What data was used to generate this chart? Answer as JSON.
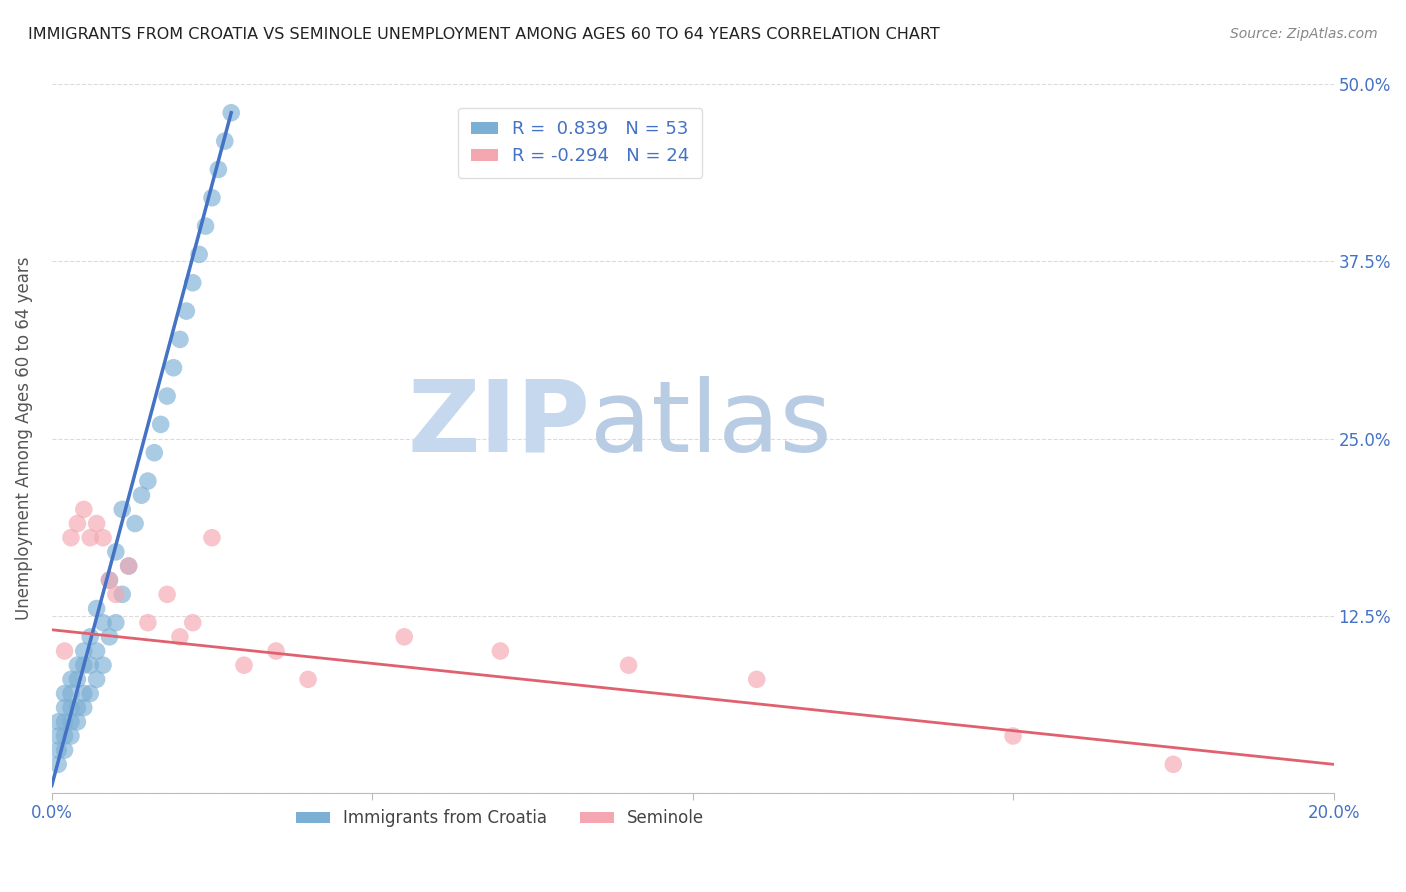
{
  "title": "IMMIGRANTS FROM CROATIA VS SEMINOLE UNEMPLOYMENT AMONG AGES 60 TO 64 YEARS CORRELATION CHART",
  "source_text": "Source: ZipAtlas.com",
  "ylabel": "Unemployment Among Ages 60 to 64 years",
  "xlabel": "",
  "xlim": [
    0.0,
    0.2
  ],
  "ylim": [
    0.0,
    0.5
  ],
  "xticks": [
    0.0,
    0.05,
    0.1,
    0.15,
    0.2
  ],
  "xticklabels": [
    "0.0%",
    "",
    "",
    "",
    "20.0%"
  ],
  "yticks": [
    0.0,
    0.125,
    0.25,
    0.375,
    0.5
  ],
  "yticklabels": [
    "",
    "12.5%",
    "25.0%",
    "37.5%",
    "50.0%"
  ],
  "blue_R": 0.839,
  "blue_N": 53,
  "pink_R": -0.294,
  "pink_N": 24,
  "blue_color": "#7bafd4",
  "pink_color": "#f4a7b0",
  "blue_line_color": "#4472c4",
  "pink_line_color": "#e06070",
  "watermark_zip": "ZIP",
  "watermark_atlas": "atlas",
  "watermark_zip_color": "#c5d8ee",
  "watermark_atlas_color": "#b8cce4",
  "legend_label_blue": "Immigrants from Croatia",
  "legend_label_pink": "Seminole",
  "blue_scatter_x": [
    0.001,
    0.001,
    0.001,
    0.001,
    0.002,
    0.002,
    0.002,
    0.002,
    0.002,
    0.003,
    0.003,
    0.003,
    0.003,
    0.003,
    0.004,
    0.004,
    0.004,
    0.004,
    0.005,
    0.005,
    0.005,
    0.005,
    0.006,
    0.006,
    0.006,
    0.007,
    0.007,
    0.007,
    0.008,
    0.008,
    0.009,
    0.009,
    0.01,
    0.01,
    0.011,
    0.011,
    0.012,
    0.013,
    0.014,
    0.015,
    0.016,
    0.017,
    0.018,
    0.019,
    0.02,
    0.021,
    0.022,
    0.023,
    0.024,
    0.025,
    0.026,
    0.027,
    0.028
  ],
  "blue_scatter_y": [
    0.02,
    0.03,
    0.04,
    0.05,
    0.03,
    0.04,
    0.05,
    0.06,
    0.07,
    0.04,
    0.05,
    0.06,
    0.07,
    0.08,
    0.05,
    0.06,
    0.08,
    0.09,
    0.06,
    0.07,
    0.09,
    0.1,
    0.07,
    0.09,
    0.11,
    0.08,
    0.1,
    0.13,
    0.09,
    0.12,
    0.11,
    0.15,
    0.12,
    0.17,
    0.14,
    0.2,
    0.16,
    0.19,
    0.21,
    0.22,
    0.24,
    0.26,
    0.28,
    0.3,
    0.32,
    0.34,
    0.36,
    0.38,
    0.4,
    0.42,
    0.44,
    0.46,
    0.48
  ],
  "pink_scatter_x": [
    0.002,
    0.003,
    0.004,
    0.005,
    0.006,
    0.007,
    0.008,
    0.009,
    0.01,
    0.012,
    0.015,
    0.018,
    0.02,
    0.022,
    0.025,
    0.03,
    0.035,
    0.04,
    0.055,
    0.07,
    0.09,
    0.11,
    0.15,
    0.175
  ],
  "pink_scatter_y": [
    0.1,
    0.18,
    0.19,
    0.2,
    0.18,
    0.19,
    0.18,
    0.15,
    0.14,
    0.16,
    0.12,
    0.14,
    0.11,
    0.12,
    0.18,
    0.09,
    0.1,
    0.08,
    0.11,
    0.1,
    0.09,
    0.08,
    0.04,
    0.02
  ],
  "blue_line_x": [
    0.0,
    0.028
  ],
  "blue_line_y": [
    0.005,
    0.48
  ],
  "pink_line_x": [
    0.0,
    0.2
  ],
  "pink_line_y": [
    0.115,
    0.02
  ],
  "grid_color": "#cccccc",
  "bg_color": "#ffffff",
  "tick_color": "#4472c4",
  "title_color": "#222222",
  "source_color": "#888888",
  "ylabel_color": "#555555"
}
